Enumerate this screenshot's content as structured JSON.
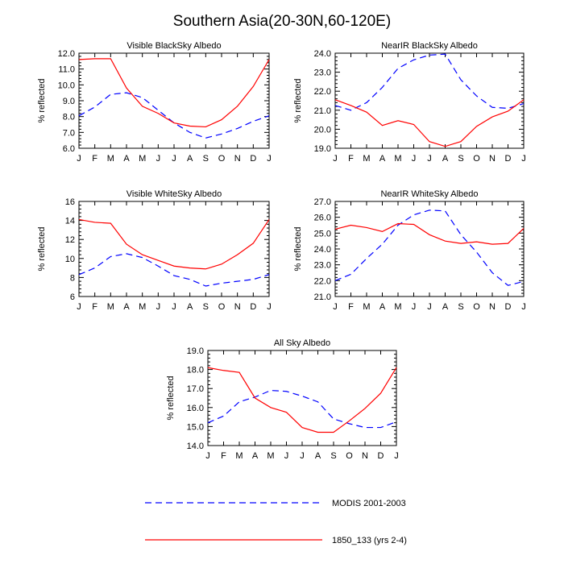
{
  "title": "Southern Asia(20-30N,60-120E)",
  "legend": {
    "modis": {
      "label": "MODIS 2001-2003",
      "color": "#0000ff",
      "style": "dashed"
    },
    "model": {
      "label": "1850_133 (yrs 2-4)",
      "color": "#ff0000",
      "style": "solid"
    }
  },
  "chart_data": [
    {
      "type": "line",
      "title": "Visible BlackSky Albedo",
      "ylabel": "% reflected",
      "categories": [
        "J",
        "F",
        "M",
        "A",
        "M",
        "J",
        "J",
        "A",
        "S",
        "O",
        "N",
        "D",
        "J"
      ],
      "ylim": [
        6.0,
        12.0
      ],
      "yticks": [
        6.0,
        7.0,
        8.0,
        9.0,
        10.0,
        11.0,
        12.0
      ],
      "ytick_labels": [
        "6.0",
        "7.0",
        "8.0",
        "9.0",
        "10.0",
        "11.0",
        "12.0"
      ],
      "series": [
        {
          "name": "MODIS 2001-2003",
          "values": [
            8.05,
            8.6,
            9.4,
            9.5,
            9.2,
            8.4,
            7.6,
            7.0,
            6.65,
            6.9,
            7.25,
            7.7,
            8.05
          ]
        },
        {
          "name": "1850_133 (yrs 2-4)",
          "values": [
            11.6,
            11.65,
            11.65,
            9.8,
            8.65,
            8.2,
            7.6,
            7.4,
            7.35,
            7.8,
            8.65,
            9.9,
            11.6
          ]
        }
      ]
    },
    {
      "type": "line",
      "title": "NearIR BlackSky Albedo",
      "ylabel": "% reflected",
      "categories": [
        "J",
        "F",
        "M",
        "A",
        "M",
        "J",
        "J",
        "A",
        "S",
        "O",
        "N",
        "D",
        "J"
      ],
      "ylim": [
        19.0,
        24.0
      ],
      "yticks": [
        19.0,
        20.0,
        21.0,
        22.0,
        23.0,
        24.0
      ],
      "ytick_labels": [
        "19.0",
        "20.0",
        "21.0",
        "22.0",
        "23.0",
        "24.0"
      ],
      "series": [
        {
          "name": "MODIS 2001-2003",
          "values": [
            21.25,
            21.0,
            21.4,
            22.2,
            23.2,
            23.65,
            23.9,
            23.95,
            22.6,
            21.75,
            21.15,
            21.1,
            21.35
          ]
        },
        {
          "name": "1850_133 (yrs 2-4)",
          "values": [
            21.55,
            21.25,
            20.9,
            20.2,
            20.45,
            20.25,
            19.35,
            19.1,
            19.35,
            20.15,
            20.65,
            20.95,
            21.55
          ]
        }
      ]
    },
    {
      "type": "line",
      "title": "Visible WhiteSky Albedo",
      "ylabel": "% reflected",
      "categories": [
        "J",
        "F",
        "M",
        "A",
        "M",
        "J",
        "J",
        "A",
        "S",
        "O",
        "N",
        "D",
        "J"
      ],
      "ylim": [
        6,
        16
      ],
      "yticks": [
        6,
        8,
        10,
        12,
        14,
        16
      ],
      "ytick_labels": [
        "6",
        "8",
        "10",
        "12",
        "14",
        "16"
      ],
      "series": [
        {
          "name": "MODIS 2001-2003",
          "values": [
            8.3,
            9.0,
            10.2,
            10.5,
            10.1,
            9.2,
            8.2,
            7.8,
            7.1,
            7.4,
            7.6,
            7.8,
            8.3
          ]
        },
        {
          "name": "1850_133 (yrs 2-4)",
          "values": [
            14.1,
            13.8,
            13.7,
            11.5,
            10.4,
            9.8,
            9.2,
            9.0,
            8.9,
            9.4,
            10.4,
            11.6,
            14.1
          ]
        }
      ]
    },
    {
      "type": "line",
      "title": "NearIR WhiteSky Albedo",
      "ylabel": "% reflected",
      "categories": [
        "J",
        "F",
        "M",
        "A",
        "M",
        "J",
        "J",
        "A",
        "S",
        "O",
        "N",
        "D",
        "J"
      ],
      "ylim": [
        21.0,
        27.0
      ],
      "yticks": [
        21.0,
        22.0,
        23.0,
        24.0,
        25.0,
        26.0,
        27.0
      ],
      "ytick_labels": [
        "21.0",
        "22.0",
        "23.0",
        "24.0",
        "25.0",
        "26.0",
        "27.0"
      ],
      "series": [
        {
          "name": "MODIS 2001-2003",
          "values": [
            22.0,
            22.4,
            23.4,
            24.3,
            25.5,
            26.15,
            26.45,
            26.4,
            24.9,
            23.8,
            22.5,
            21.7,
            21.95
          ]
        },
        {
          "name": "1850_133 (yrs 2-4)",
          "values": [
            25.25,
            25.5,
            25.35,
            25.1,
            25.6,
            25.55,
            24.9,
            24.5,
            24.35,
            24.45,
            24.3,
            24.35,
            25.3
          ]
        }
      ]
    },
    {
      "type": "line",
      "title": "All Sky Albedo",
      "ylabel": "% reflected",
      "categories": [
        "J",
        "F",
        "M",
        "A",
        "M",
        "J",
        "J",
        "A",
        "S",
        "O",
        "N",
        "D",
        "J"
      ],
      "ylim": [
        14.0,
        19.0
      ],
      "yticks": [
        14.0,
        15.0,
        16.0,
        17.0,
        18.0,
        19.0
      ],
      "ytick_labels": [
        "14.0",
        "15.0",
        "16.0",
        "17.0",
        "18.0",
        "19.0"
      ],
      "series": [
        {
          "name": "MODIS 2001-2003",
          "values": [
            15.2,
            15.55,
            16.3,
            16.55,
            16.9,
            16.85,
            16.6,
            16.3,
            15.4,
            15.15,
            14.95,
            14.95,
            15.25
          ]
        },
        {
          "name": "1850_133 (yrs 2-4)",
          "values": [
            18.1,
            17.95,
            17.85,
            16.5,
            16.0,
            15.75,
            14.95,
            14.7,
            14.7,
            15.3,
            15.95,
            16.75,
            18.1
          ]
        }
      ]
    }
  ]
}
